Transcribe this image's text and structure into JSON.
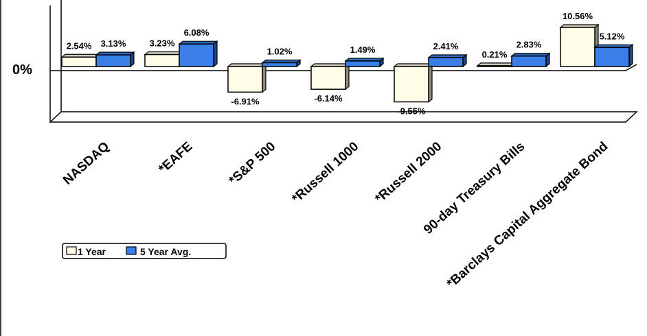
{
  "chart_data": {
    "type": "bar",
    "categories": [
      "NASDAQ",
      "*EAFE",
      "*S&P 500",
      "*Russell 1000",
      "*Russell 2000",
      "90-day Treasury Bills",
      "*Barclays Capital Aggregate Bond"
    ],
    "series": [
      {
        "name": "1 Year",
        "values": [
          2.54,
          3.23,
          -6.91,
          -6.14,
          -9.55,
          0.21,
          10.56
        ],
        "labels": [
          "2.54%",
          "3.23%",
          "-6.91%",
          "-6.14%",
          "-9.55%",
          "0.21%",
          "10.56%"
        ],
        "color": "#FFFDE8"
      },
      {
        "name": "5 Year Avg.",
        "values": [
          3.13,
          6.08,
          1.02,
          1.49,
          2.41,
          2.83,
          5.12
        ],
        "labels": [
          "3.13%",
          "6.08%",
          "1.02%",
          "1.49%",
          "2.41%",
          "2.83%",
          "5.12%"
        ],
        "color": "#3A7FE8"
      }
    ],
    "y_tick_label": "0%",
    "legend_position": "bottom-left",
    "grid": false
  }
}
